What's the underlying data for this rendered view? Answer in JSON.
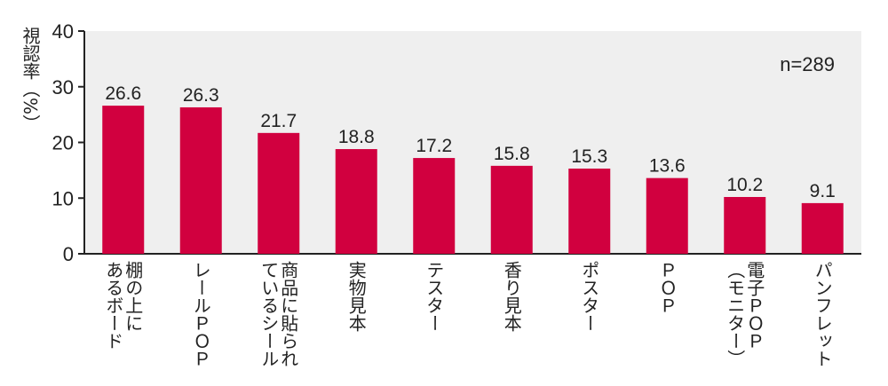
{
  "chart_data": {
    "type": "bar",
    "ylabel": "視認率（%）",
    "note": "n=289",
    "ylim": [
      0,
      40
    ],
    "yticks": [
      0,
      10,
      20,
      30,
      40
    ],
    "grid": false,
    "categories": [
      [
        "棚の上に",
        "あるボード"
      ],
      [
        "レールＰＯＰ"
      ],
      [
        "商品に貼られ",
        "ているシール"
      ],
      [
        "実物見本"
      ],
      [
        "テスター"
      ],
      [
        "香り見本"
      ],
      [
        "ポスター"
      ],
      [
        "ＰＯＰ"
      ],
      [
        "電子ＰＯＰ",
        "（モニター）"
      ],
      [
        "パンフレット"
      ]
    ],
    "values": [
      26.6,
      26.3,
      21.7,
      18.8,
      17.2,
      15.8,
      15.3,
      13.6,
      10.2,
      9.1
    ],
    "value_labels": [
      "26.6",
      "26.3",
      "21.7",
      "18.8",
      "17.2",
      "15.8",
      "15.3",
      "13.6",
      "10.2",
      "9.1"
    ],
    "colors": {
      "plot_bg": "#efefef",
      "bar": "#d1003f",
      "axis": "#222222"
    }
  }
}
